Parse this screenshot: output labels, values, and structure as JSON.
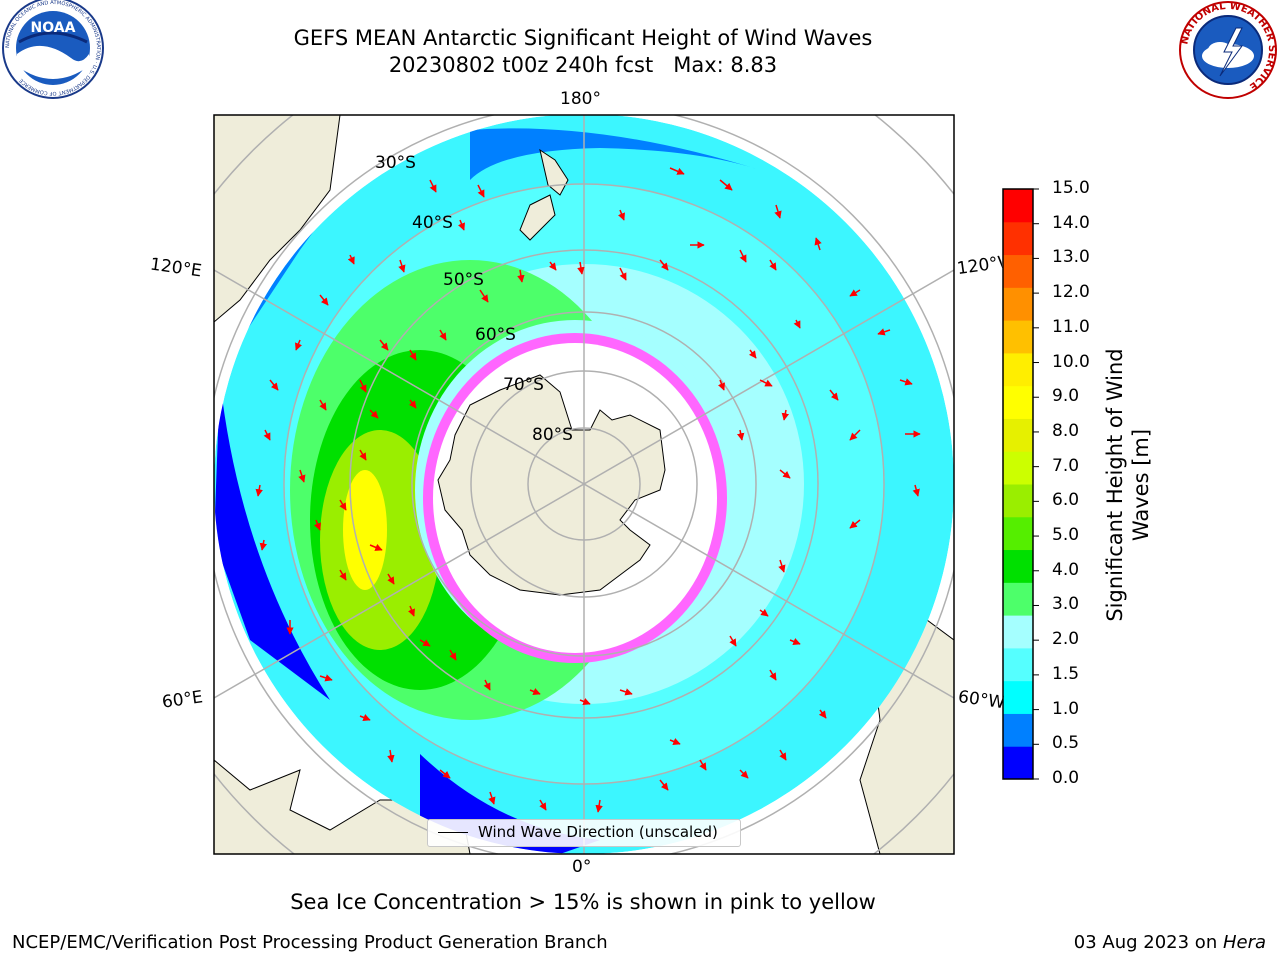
{
  "header": {
    "title_line1": "GEFS MEAN Antarctic Significant Height of Wind Waves",
    "title_line2": "20230802 t00z 240h fcst   Max: 8.83"
  },
  "logos": {
    "noara_left": "NOAA",
    "noaa_ring": "NATIONAL OCEANIC AND ATMOSPHERIC ADMINISTRATION · U.S. DEPARTMENT OF COMMERCE",
    "nws_right": "NATIONAL WEATHER SERVICE"
  },
  "map": {
    "lon_labels": {
      "top": "180°",
      "bottom": "0°",
      "left_upper": "120°E",
      "left_lower": "60°E",
      "right_upper": "120°W",
      "right_lower": "60°W"
    },
    "lat_labels": [
      "30°S",
      "40°S",
      "50°S",
      "60°S",
      "70°S",
      "80°S"
    ],
    "legend_label": "Wind Wave Direction (unscaled)"
  },
  "colorbar": {
    "title": "Significant Height of Wind Waves [m]",
    "ticks": [
      "15.0",
      "14.0",
      "13.0",
      "12.0",
      "11.0",
      "10.0",
      "9.0",
      "8.0",
      "7.0",
      "6.0",
      "5.0",
      "4.0",
      "3.0",
      "2.0",
      "1.5",
      "1.0",
      "0.5",
      "0.0"
    ],
    "colors": [
      "#0000ff",
      "#0080ff",
      "#00ffff",
      "#55ffff",
      "#a5ffff",
      "#4dff6a",
      "#00e000",
      "#55ee00",
      "#9aee00",
      "#ccff00",
      "#e6f000",
      "#ffff00",
      "#ffee00",
      "#ffc000",
      "#ff9000",
      "#ff6000",
      "#ff3000",
      "#ff0000"
    ]
  },
  "footer": {
    "sea_ice_note": "Sea Ice Concentration > 15% is shown in pink to yellow",
    "credit": "NCEP/EMC/Verification Post Processing Product Generation Branch",
    "date_prefix": "03 Aug 2023 on ",
    "date_machine": "Hera"
  }
}
